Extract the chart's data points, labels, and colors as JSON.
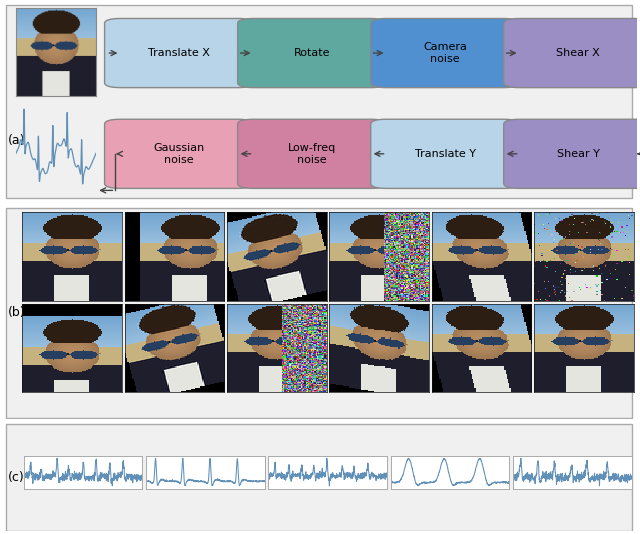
{
  "panel_a_label": "(a)",
  "panel_b_label": "(b)",
  "panel_c_label": "(c)",
  "row1_boxes": [
    "Translate X",
    "Rotate",
    "Camera\nnoise",
    "Shear X"
  ],
  "row2_boxes": [
    "Gaussian\nnoise",
    "Low-freq\nnoise",
    "Translate Y",
    "Shear Y"
  ],
  "row1_colors": [
    "#b8d4e8",
    "#5fa8a0",
    "#5090d0",
    "#9b8ec4"
  ],
  "row2_colors": [
    "#e8a0b4",
    "#d080a0",
    "#b8d4e8",
    "#9b8ec4"
  ],
  "arrow_color": "#444444",
  "panel_bg": "#f0f0f0",
  "border_color": "#aaaaaa",
  "waveform_color": "#6090b8",
  "n_face_cols": 6,
  "n_face_rows": 2,
  "n_signals": 5
}
